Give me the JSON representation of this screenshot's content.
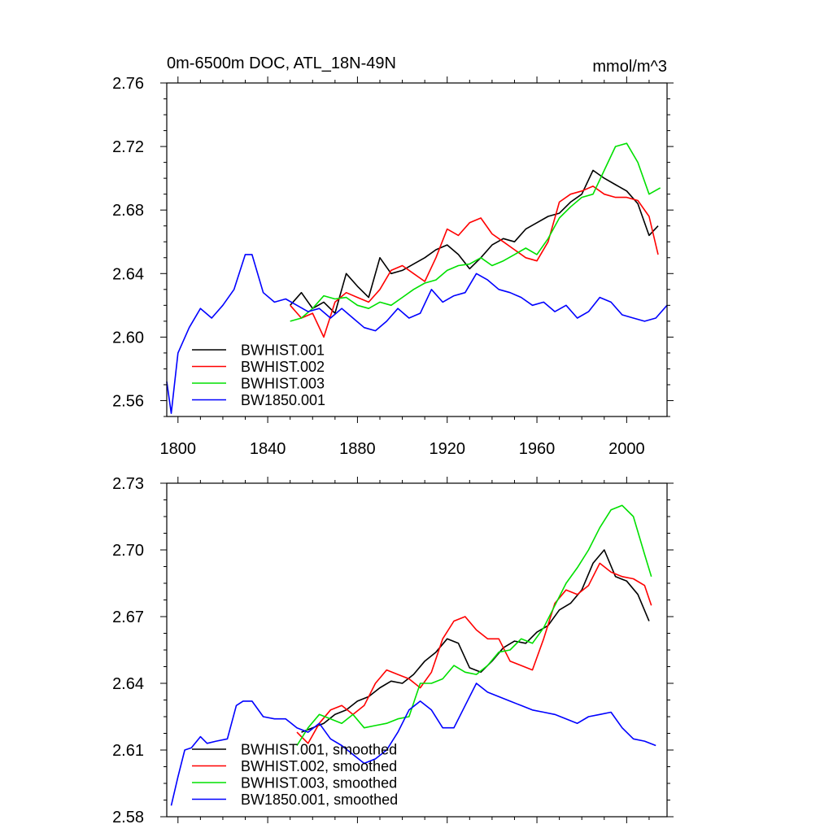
{
  "chart_data": [
    {
      "type": "line",
      "title": "0m-6500m DOC, ATL_18N-49N",
      "units": "mmol/m^3",
      "xlim": [
        1795,
        2018
      ],
      "ylim": [
        2.55,
        2.76
      ],
      "xticks": [
        1800,
        1840,
        1880,
        1920,
        1960,
        2000
      ],
      "yticks": [
        2.56,
        2.6,
        2.64,
        2.68,
        2.72,
        2.76
      ],
      "show_xtick_labels": true,
      "legend_placement": "bottom-left",
      "series": [
        {
          "name": "BWHIST.001",
          "color": "#000000",
          "x": [
            1850,
            1855,
            1860,
            1865,
            1870,
            1875,
            1880,
            1885,
            1890,
            1895,
            1900,
            1905,
            1910,
            1915,
            1920,
            1925,
            1930,
            1935,
            1940,
            1945,
            1950,
            1955,
            1960,
            1965,
            1970,
            1975,
            1980,
            1985,
            1990,
            1995,
            2000,
            2005,
            2010,
            2014
          ],
          "values": [
            2.62,
            2.628,
            2.618,
            2.622,
            2.615,
            2.64,
            2.632,
            2.625,
            2.65,
            2.64,
            2.642,
            2.646,
            2.65,
            2.655,
            2.658,
            2.652,
            2.643,
            2.65,
            2.658,
            2.662,
            2.66,
            2.668,
            2.672,
            2.676,
            2.678,
            2.685,
            2.69,
            2.705,
            2.7,
            2.696,
            2.692,
            2.684,
            2.664,
            2.67
          ]
        },
        {
          "name": "BWHIST.002",
          "color": "#ff0000",
          "x": [
            1850,
            1855,
            1860,
            1865,
            1870,
            1875,
            1880,
            1885,
            1890,
            1895,
            1900,
            1905,
            1910,
            1915,
            1920,
            1925,
            1930,
            1935,
            1940,
            1945,
            1950,
            1955,
            1960,
            1965,
            1970,
            1975,
            1980,
            1985,
            1990,
            1995,
            2000,
            2005,
            2010,
            2014
          ],
          "values": [
            2.62,
            2.612,
            2.615,
            2.6,
            2.622,
            2.628,
            2.625,
            2.622,
            2.63,
            2.642,
            2.645,
            2.64,
            2.635,
            2.65,
            2.668,
            2.664,
            2.672,
            2.675,
            2.665,
            2.66,
            2.655,
            2.65,
            2.648,
            2.66,
            2.685,
            2.69,
            2.692,
            2.695,
            2.69,
            2.688,
            2.688,
            2.686,
            2.676,
            2.652
          ]
        },
        {
          "name": "BWHIST.003",
          "color": "#00e000",
          "x": [
            1850,
            1855,
            1860,
            1865,
            1870,
            1875,
            1880,
            1885,
            1890,
            1895,
            1900,
            1905,
            1910,
            1915,
            1920,
            1925,
            1930,
            1935,
            1940,
            1945,
            1950,
            1955,
            1960,
            1965,
            1970,
            1975,
            1980,
            1985,
            1990,
            1995,
            2000,
            2005,
            2010,
            2015
          ],
          "values": [
            2.61,
            2.612,
            2.618,
            2.626,
            2.624,
            2.625,
            2.62,
            2.618,
            2.622,
            2.62,
            2.625,
            2.63,
            2.634,
            2.636,
            2.642,
            2.645,
            2.646,
            2.65,
            2.645,
            2.648,
            2.652,
            2.656,
            2.652,
            2.662,
            2.675,
            2.682,
            2.688,
            2.69,
            2.705,
            2.72,
            2.722,
            2.71,
            2.69,
            2.694
          ]
        },
        {
          "name": "BW1850.001",
          "color": "#0000ff",
          "x": [
            1795,
            1797,
            1800,
            1805,
            1810,
            1815,
            1820,
            1825,
            1830,
            1833,
            1838,
            1843,
            1848,
            1853,
            1858,
            1863,
            1868,
            1873,
            1878,
            1883,
            1888,
            1893,
            1898,
            1903,
            1908,
            1913,
            1918,
            1923,
            1928,
            1933,
            1938,
            1943,
            1948,
            1953,
            1958,
            1963,
            1968,
            1973,
            1978,
            1983,
            1988,
            1993,
            1998,
            2003,
            2008,
            2013,
            2018
          ],
          "values": [
            2.572,
            2.552,
            2.59,
            2.606,
            2.618,
            2.612,
            2.62,
            2.63,
            2.652,
            2.652,
            2.628,
            2.622,
            2.624,
            2.62,
            2.616,
            2.618,
            2.612,
            2.618,
            2.612,
            2.606,
            2.604,
            2.61,
            2.618,
            2.612,
            2.615,
            2.63,
            2.622,
            2.626,
            2.628,
            2.64,
            2.636,
            2.63,
            2.628,
            2.625,
            2.62,
            2.622,
            2.616,
            2.62,
            2.612,
            2.616,
            2.625,
            2.622,
            2.614,
            2.612,
            2.61,
            2.612,
            2.62
          ]
        }
      ]
    },
    {
      "type": "line",
      "title": "",
      "units": "",
      "xlim": [
        1795,
        2018
      ],
      "ylim": [
        2.58,
        2.73
      ],
      "xticks": [
        1800,
        1840,
        1880,
        1920,
        1960,
        2000
      ],
      "yticks": [
        2.58,
        2.61,
        2.64,
        2.67,
        2.7,
        2.73
      ],
      "show_xtick_labels": false,
      "legend_placement": "bottom-left",
      "series": [
        {
          "name": "BWHIST.001, smoothed",
          "color": "#000000",
          "x": [
            1855,
            1860,
            1865,
            1870,
            1875,
            1880,
            1885,
            1890,
            1895,
            1900,
            1905,
            1910,
            1915,
            1920,
            1925,
            1930,
            1935,
            1940,
            1945,
            1950,
            1955,
            1960,
            1965,
            1970,
            1975,
            1980,
            1985,
            1990,
            1995,
            2000,
            2005,
            2010
          ],
          "values": [
            2.618,
            2.62,
            2.622,
            2.626,
            2.628,
            2.632,
            2.634,
            2.638,
            2.641,
            2.64,
            2.644,
            2.65,
            2.654,
            2.66,
            2.658,
            2.647,
            2.645,
            2.65,
            2.656,
            2.659,
            2.658,
            2.663,
            2.666,
            2.673,
            2.676,
            2.682,
            2.694,
            2.7,
            2.688,
            2.686,
            2.68,
            2.668
          ]
        },
        {
          "name": "BWHIST.002, smoothed",
          "color": "#ff0000",
          "x": [
            1853,
            1858,
            1863,
            1868,
            1873,
            1878,
            1883,
            1888,
            1893,
            1898,
            1903,
            1908,
            1913,
            1918,
            1923,
            1928,
            1933,
            1938,
            1943,
            1948,
            1953,
            1958,
            1963,
            1968,
            1973,
            1978,
            1983,
            1988,
            1993,
            1998,
            2003,
            2008,
            2011
          ],
          "values": [
            2.618,
            2.613,
            2.622,
            2.628,
            2.63,
            2.626,
            2.63,
            2.64,
            2.646,
            2.644,
            2.642,
            2.638,
            2.645,
            2.66,
            2.668,
            2.67,
            2.664,
            2.66,
            2.66,
            2.65,
            2.648,
            2.646,
            2.66,
            2.676,
            2.682,
            2.68,
            2.684,
            2.694,
            2.69,
            2.688,
            2.687,
            2.684,
            2.675
          ]
        },
        {
          "name": "BWHIST.003, smoothed",
          "color": "#00e000",
          "x": [
            1853,
            1858,
            1863,
            1868,
            1873,
            1878,
            1883,
            1888,
            1893,
            1898,
            1903,
            1908,
            1913,
            1918,
            1923,
            1928,
            1933,
            1938,
            1943,
            1948,
            1953,
            1958,
            1963,
            1968,
            1973,
            1978,
            1983,
            1988,
            1993,
            1998,
            2003,
            2008,
            2011
          ],
          "values": [
            2.612,
            2.62,
            2.626,
            2.624,
            2.622,
            2.626,
            2.62,
            2.621,
            2.622,
            2.624,
            2.625,
            2.64,
            2.64,
            2.642,
            2.648,
            2.645,
            2.644,
            2.648,
            2.654,
            2.655,
            2.66,
            2.658,
            2.665,
            2.675,
            2.685,
            2.692,
            2.7,
            2.71,
            2.718,
            2.72,
            2.715,
            2.698,
            2.688
          ]
        },
        {
          "name": "BW1850.001, smoothed",
          "color": "#0000ff",
          "x": [
            1797,
            1800,
            1803,
            1806,
            1810,
            1813,
            1817,
            1822,
            1826,
            1829,
            1833,
            1838,
            1843,
            1848,
            1853,
            1858,
            1863,
            1868,
            1873,
            1878,
            1883,
            1888,
            1893,
            1898,
            1903,
            1908,
            1913,
            1918,
            1923,
            1928,
            1933,
            1938,
            1943,
            1948,
            1953,
            1958,
            1963,
            1968,
            1973,
            1978,
            1983,
            1988,
            1993,
            1998,
            2003,
            2008,
            2013
          ],
          "values": [
            2.585,
            2.598,
            2.61,
            2.611,
            2.616,
            2.613,
            2.614,
            2.615,
            2.63,
            2.632,
            2.632,
            2.625,
            2.624,
            2.624,
            2.62,
            2.618,
            2.622,
            2.615,
            2.612,
            2.608,
            2.604,
            2.606,
            2.61,
            2.618,
            2.628,
            2.632,
            2.628,
            2.62,
            2.62,
            2.63,
            2.64,
            2.636,
            2.634,
            2.632,
            2.63,
            2.628,
            2.627,
            2.626,
            2.624,
            2.622,
            2.625,
            2.626,
            2.627,
            2.62,
            2.615,
            2.614,
            2.612
          ]
        }
      ]
    }
  ]
}
